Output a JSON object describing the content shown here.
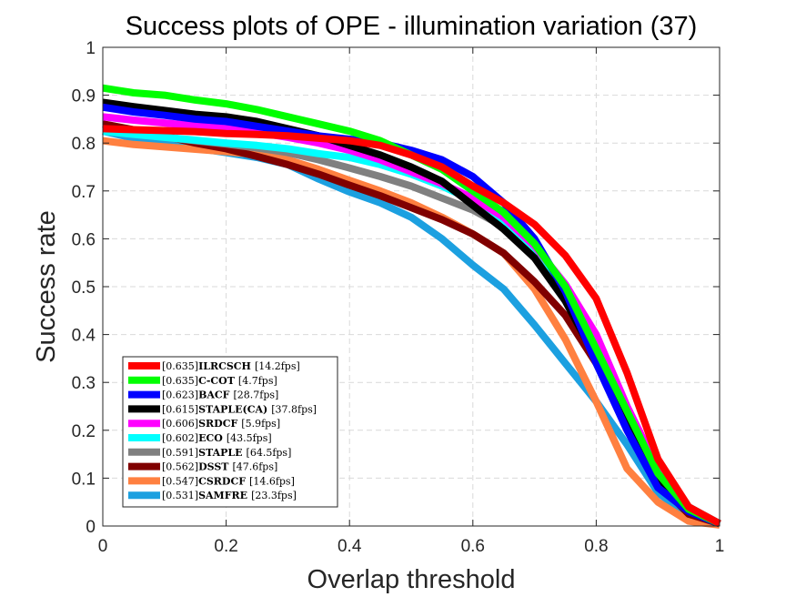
{
  "chart_data": {
    "type": "line",
    "title": "Success plots of OPE - illumination variation (37)",
    "xlabel": "Overlap threshold",
    "ylabel": "Success rate",
    "xlim": [
      0,
      1
    ],
    "ylim": [
      0,
      1
    ],
    "grid": true,
    "legend_position": "bottom-left",
    "x": [
      0,
      0.05,
      0.1,
      0.15,
      0.2,
      0.25,
      0.3,
      0.35,
      0.4,
      0.45,
      0.5,
      0.55,
      0.6,
      0.65,
      0.7,
      0.75,
      0.8,
      0.85,
      0.9,
      0.95,
      1
    ],
    "x_ticks": [
      "0",
      "0.2",
      "0.4",
      "0.6",
      "0.8",
      "1"
    ],
    "x_tick_values": [
      0,
      0.2,
      0.4,
      0.6,
      0.8,
      1
    ],
    "y_ticks": [
      "0",
      "0.1",
      "0.2",
      "0.3",
      "0.4",
      "0.5",
      "0.6",
      "0.7",
      "0.8",
      "0.9",
      "1"
    ],
    "y_tick_values": [
      0,
      0.1,
      0.2,
      0.3,
      0.4,
      0.5,
      0.6,
      0.7,
      0.8,
      0.9,
      1
    ],
    "series": [
      {
        "name": "ILRCSCH",
        "score": "[0.635]",
        "fps": "[14.2fps]",
        "color": "#ff0000",
        "values": [
          0.83,
          0.828,
          0.826,
          0.824,
          0.82,
          0.818,
          0.815,
          0.81,
          0.805,
          0.795,
          0.775,
          0.75,
          0.71,
          0.675,
          0.63,
          0.565,
          0.475,
          0.32,
          0.14,
          0.04,
          0.005
        ]
      },
      {
        "name": "C-COT",
        "score": "[0.635]",
        "fps": "[4.7fps]",
        "color": "#00ff00",
        "values": [
          0.915,
          0.905,
          0.9,
          0.89,
          0.882,
          0.87,
          0.855,
          0.84,
          0.825,
          0.805,
          0.775,
          0.745,
          0.7,
          0.655,
          0.59,
          0.5,
          0.37,
          0.24,
          0.11,
          0.035,
          0.005
        ]
      },
      {
        "name": "BACF",
        "score": "[0.623]",
        "fps": "[28.7fps]",
        "color": "#0000ff",
        "values": [
          0.875,
          0.865,
          0.858,
          0.85,
          0.845,
          0.835,
          0.825,
          0.815,
          0.808,
          0.8,
          0.785,
          0.765,
          0.73,
          0.675,
          0.6,
          0.49,
          0.34,
          0.2,
          0.08,
          0.03,
          0.005
        ]
      },
      {
        "name": "STAPLE(CA)",
        "score": "[0.615]",
        "fps": "[37.8fps]",
        "color": "#000000",
        "values": [
          0.885,
          0.876,
          0.868,
          0.86,
          0.855,
          0.845,
          0.83,
          0.815,
          0.795,
          0.775,
          0.75,
          0.72,
          0.67,
          0.62,
          0.56,
          0.47,
          0.35,
          0.22,
          0.1,
          0.03,
          0.005
        ]
      },
      {
        "name": "SRDCF",
        "score": "[0.606]",
        "fps": "[5.9fps]",
        "color": "#ff00ff",
        "values": [
          0.855,
          0.848,
          0.842,
          0.836,
          0.83,
          0.822,
          0.812,
          0.8,
          0.785,
          0.765,
          0.74,
          0.715,
          0.685,
          0.645,
          0.585,
          0.505,
          0.4,
          0.25,
          0.12,
          0.035,
          0.005
        ]
      },
      {
        "name": "ECO",
        "score": "[0.602]",
        "fps": "[43.5fps]",
        "color": "#00ffff",
        "values": [
          0.825,
          0.818,
          0.812,
          0.806,
          0.8,
          0.795,
          0.788,
          0.778,
          0.77,
          0.755,
          0.735,
          0.71,
          0.68,
          0.64,
          0.575,
          0.49,
          0.38,
          0.24,
          0.12,
          0.04,
          0.005
        ]
      },
      {
        "name": "STAPLE",
        "score": "[0.591]",
        "fps": "[64.5fps]",
        "color": "#808080",
        "values": [
          0.825,
          0.818,
          0.812,
          0.805,
          0.798,
          0.79,
          0.78,
          0.765,
          0.748,
          0.73,
          0.71,
          0.685,
          0.66,
          0.625,
          0.565,
          0.48,
          0.37,
          0.23,
          0.1,
          0.03,
          0.005
        ]
      },
      {
        "name": "DSST",
        "score": "[0.562]",
        "fps": "[47.6fps]",
        "color": "#800000",
        "values": [
          0.84,
          0.828,
          0.815,
          0.8,
          0.788,
          0.772,
          0.755,
          0.735,
          0.712,
          0.69,
          0.665,
          0.64,
          0.61,
          0.57,
          0.51,
          0.44,
          0.34,
          0.21,
          0.09,
          0.025,
          0.005
        ]
      },
      {
        "name": "CSRDCF",
        "score": "[0.547]",
        "fps": "[14.6fps]",
        "color": "#ff8040",
        "values": [
          0.805,
          0.797,
          0.792,
          0.787,
          0.782,
          0.776,
          0.765,
          0.745,
          0.722,
          0.7,
          0.675,
          0.645,
          0.61,
          0.57,
          0.495,
          0.39,
          0.26,
          0.12,
          0.05,
          0.01,
          0.002
        ]
      },
      {
        "name": "SAMFRE",
        "score": "[0.531]",
        "fps": "[23.3fps]",
        "color": "#1ca0e0",
        "values": [
          0.825,
          0.81,
          0.8,
          0.79,
          0.78,
          0.77,
          0.755,
          0.725,
          0.698,
          0.675,
          0.645,
          0.6,
          0.545,
          0.495,
          0.42,
          0.34,
          0.26,
          0.17,
          0.07,
          0.02,
          0.002
        ]
      }
    ]
  }
}
